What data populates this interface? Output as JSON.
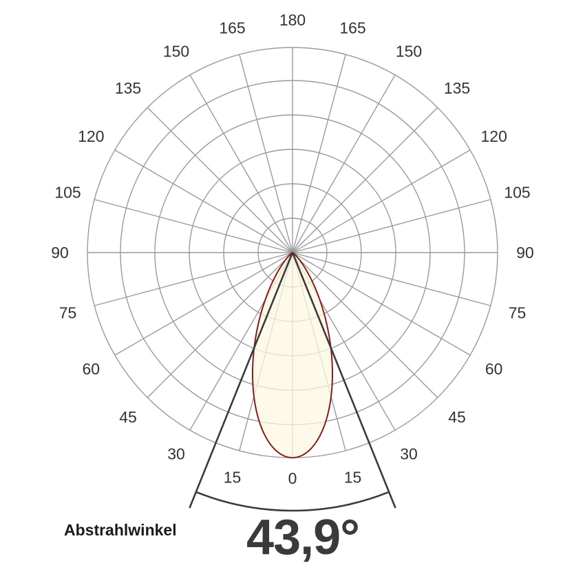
{
  "chart_data": {
    "type": "polar-distribution",
    "title": "",
    "angle_labels_left": [
      "0",
      "15",
      "30",
      "45",
      "60",
      "75",
      "90",
      "105",
      "120",
      "135",
      "150",
      "165",
      "180"
    ],
    "angle_labels_right": [
      "15",
      "30",
      "45",
      "60",
      "75",
      "90",
      "105",
      "120",
      "135",
      "150",
      "165"
    ],
    "angle_step_deg": 15,
    "grid_ring_count": 6,
    "grid": true,
    "series": [
      {
        "type": "luminous-intensity-curve",
        "curve_profile": "cos^n",
        "beam_angle_deg": 43.9,
        "peak_relative": 1.0,
        "fill_color": "#fdf8e2",
        "line_color": "#8b1a1a"
      }
    ],
    "beam_angle_lines": {
      "half_angle_deg": 21.95,
      "color": "#3a3a3a"
    }
  },
  "beam": {
    "label": "Abstrahlwinkel",
    "value": "43,9°"
  },
  "colors": {
    "grid": "#9a9a9a",
    "text": "#333333"
  }
}
